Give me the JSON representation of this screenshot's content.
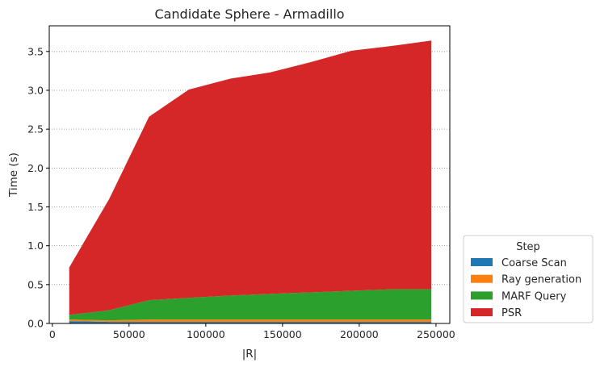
{
  "chart_data": {
    "type": "area",
    "stacked": true,
    "title": "Candidate Sphere - Armadillo",
    "xlabel": "|R|",
    "ylabel": "Time (s)",
    "xlim": [
      -2000,
      259000
    ],
    "ylim": [
      0,
      3.83
    ],
    "xticks": [
      0,
      50000,
      100000,
      150000,
      200000,
      250000
    ],
    "xtick_labels": [
      "0",
      "50000",
      "100000",
      "150000",
      "200000",
      "250000"
    ],
    "yticks": [
      0.0,
      0.5,
      1.0,
      1.5,
      2.0,
      2.5,
      3.0,
      3.5
    ],
    "ytick_labels": [
      "0.0",
      "0.5",
      "1.0",
      "1.5",
      "2.0",
      "2.5",
      "3.0",
      "3.5"
    ],
    "grid": "horizontal dotted",
    "legend": {
      "title": "Step",
      "placement": "lower-right outside"
    },
    "x": [
      11000,
      37000,
      63000,
      89000,
      116000,
      142000,
      168000,
      195000,
      221000,
      247000
    ],
    "series": [
      {
        "name": "Coarse Scan",
        "color": "#1f77b4",
        "values": [
          0.03,
          0.02,
          0.02,
          0.02,
          0.02,
          0.02,
          0.02,
          0.02,
          0.02,
          0.02
        ]
      },
      {
        "name": "Ray generation",
        "color": "#ff7f0e",
        "values": [
          0.02,
          0.02,
          0.03,
          0.03,
          0.03,
          0.03,
          0.03,
          0.03,
          0.03,
          0.03
        ]
      },
      {
        "name": "MARF Query",
        "color": "#2ca02c",
        "values": [
          0.06,
          0.13,
          0.25,
          0.28,
          0.31,
          0.33,
          0.35,
          0.37,
          0.39,
          0.39
        ]
      },
      {
        "name": "PSR",
        "color": "#d62728",
        "values": [
          0.61,
          1.43,
          2.36,
          2.68,
          2.79,
          2.85,
          2.96,
          3.09,
          3.13,
          3.2
        ]
      }
    ]
  }
}
